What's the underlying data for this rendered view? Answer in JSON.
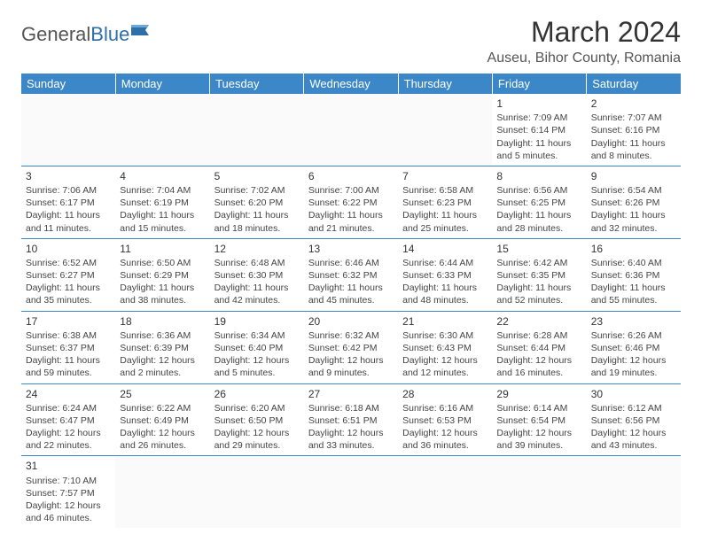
{
  "logo": {
    "part1": "General",
    "part2": "Blue"
  },
  "title": "March 2024",
  "location": "Auseu, Bihor County, Romania",
  "colors": {
    "header_bg": "#3b87c8",
    "header_text": "#ffffff",
    "border": "#3b87c8",
    "text": "#444444",
    "logo_accent": "#2f6fa8"
  },
  "weekdays": [
    "Sunday",
    "Monday",
    "Tuesday",
    "Wednesday",
    "Thursday",
    "Friday",
    "Saturday"
  ],
  "weeks": [
    [
      null,
      null,
      null,
      null,
      null,
      {
        "day": "1",
        "sunrise": "Sunrise: 7:09 AM",
        "sunset": "Sunset: 6:14 PM",
        "daylight": "Daylight: 11 hours and 5 minutes."
      },
      {
        "day": "2",
        "sunrise": "Sunrise: 7:07 AM",
        "sunset": "Sunset: 6:16 PM",
        "daylight": "Daylight: 11 hours and 8 minutes."
      }
    ],
    [
      {
        "day": "3",
        "sunrise": "Sunrise: 7:06 AM",
        "sunset": "Sunset: 6:17 PM",
        "daylight": "Daylight: 11 hours and 11 minutes."
      },
      {
        "day": "4",
        "sunrise": "Sunrise: 7:04 AM",
        "sunset": "Sunset: 6:19 PM",
        "daylight": "Daylight: 11 hours and 15 minutes."
      },
      {
        "day": "5",
        "sunrise": "Sunrise: 7:02 AM",
        "sunset": "Sunset: 6:20 PM",
        "daylight": "Daylight: 11 hours and 18 minutes."
      },
      {
        "day": "6",
        "sunrise": "Sunrise: 7:00 AM",
        "sunset": "Sunset: 6:22 PM",
        "daylight": "Daylight: 11 hours and 21 minutes."
      },
      {
        "day": "7",
        "sunrise": "Sunrise: 6:58 AM",
        "sunset": "Sunset: 6:23 PM",
        "daylight": "Daylight: 11 hours and 25 minutes."
      },
      {
        "day": "8",
        "sunrise": "Sunrise: 6:56 AM",
        "sunset": "Sunset: 6:25 PM",
        "daylight": "Daylight: 11 hours and 28 minutes."
      },
      {
        "day": "9",
        "sunrise": "Sunrise: 6:54 AM",
        "sunset": "Sunset: 6:26 PM",
        "daylight": "Daylight: 11 hours and 32 minutes."
      }
    ],
    [
      {
        "day": "10",
        "sunrise": "Sunrise: 6:52 AM",
        "sunset": "Sunset: 6:27 PM",
        "daylight": "Daylight: 11 hours and 35 minutes."
      },
      {
        "day": "11",
        "sunrise": "Sunrise: 6:50 AM",
        "sunset": "Sunset: 6:29 PM",
        "daylight": "Daylight: 11 hours and 38 minutes."
      },
      {
        "day": "12",
        "sunrise": "Sunrise: 6:48 AM",
        "sunset": "Sunset: 6:30 PM",
        "daylight": "Daylight: 11 hours and 42 minutes."
      },
      {
        "day": "13",
        "sunrise": "Sunrise: 6:46 AM",
        "sunset": "Sunset: 6:32 PM",
        "daylight": "Daylight: 11 hours and 45 minutes."
      },
      {
        "day": "14",
        "sunrise": "Sunrise: 6:44 AM",
        "sunset": "Sunset: 6:33 PM",
        "daylight": "Daylight: 11 hours and 48 minutes."
      },
      {
        "day": "15",
        "sunrise": "Sunrise: 6:42 AM",
        "sunset": "Sunset: 6:35 PM",
        "daylight": "Daylight: 11 hours and 52 minutes."
      },
      {
        "day": "16",
        "sunrise": "Sunrise: 6:40 AM",
        "sunset": "Sunset: 6:36 PM",
        "daylight": "Daylight: 11 hours and 55 minutes."
      }
    ],
    [
      {
        "day": "17",
        "sunrise": "Sunrise: 6:38 AM",
        "sunset": "Sunset: 6:37 PM",
        "daylight": "Daylight: 11 hours and 59 minutes."
      },
      {
        "day": "18",
        "sunrise": "Sunrise: 6:36 AM",
        "sunset": "Sunset: 6:39 PM",
        "daylight": "Daylight: 12 hours and 2 minutes."
      },
      {
        "day": "19",
        "sunrise": "Sunrise: 6:34 AM",
        "sunset": "Sunset: 6:40 PM",
        "daylight": "Daylight: 12 hours and 5 minutes."
      },
      {
        "day": "20",
        "sunrise": "Sunrise: 6:32 AM",
        "sunset": "Sunset: 6:42 PM",
        "daylight": "Daylight: 12 hours and 9 minutes."
      },
      {
        "day": "21",
        "sunrise": "Sunrise: 6:30 AM",
        "sunset": "Sunset: 6:43 PM",
        "daylight": "Daylight: 12 hours and 12 minutes."
      },
      {
        "day": "22",
        "sunrise": "Sunrise: 6:28 AM",
        "sunset": "Sunset: 6:44 PM",
        "daylight": "Daylight: 12 hours and 16 minutes."
      },
      {
        "day": "23",
        "sunrise": "Sunrise: 6:26 AM",
        "sunset": "Sunset: 6:46 PM",
        "daylight": "Daylight: 12 hours and 19 minutes."
      }
    ],
    [
      {
        "day": "24",
        "sunrise": "Sunrise: 6:24 AM",
        "sunset": "Sunset: 6:47 PM",
        "daylight": "Daylight: 12 hours and 22 minutes."
      },
      {
        "day": "25",
        "sunrise": "Sunrise: 6:22 AM",
        "sunset": "Sunset: 6:49 PM",
        "daylight": "Daylight: 12 hours and 26 minutes."
      },
      {
        "day": "26",
        "sunrise": "Sunrise: 6:20 AM",
        "sunset": "Sunset: 6:50 PM",
        "daylight": "Daylight: 12 hours and 29 minutes."
      },
      {
        "day": "27",
        "sunrise": "Sunrise: 6:18 AM",
        "sunset": "Sunset: 6:51 PM",
        "daylight": "Daylight: 12 hours and 33 minutes."
      },
      {
        "day": "28",
        "sunrise": "Sunrise: 6:16 AM",
        "sunset": "Sunset: 6:53 PM",
        "daylight": "Daylight: 12 hours and 36 minutes."
      },
      {
        "day": "29",
        "sunrise": "Sunrise: 6:14 AM",
        "sunset": "Sunset: 6:54 PM",
        "daylight": "Daylight: 12 hours and 39 minutes."
      },
      {
        "day": "30",
        "sunrise": "Sunrise: 6:12 AM",
        "sunset": "Sunset: 6:56 PM",
        "daylight": "Daylight: 12 hours and 43 minutes."
      }
    ],
    [
      {
        "day": "31",
        "sunrise": "Sunrise: 7:10 AM",
        "sunset": "Sunset: 7:57 PM",
        "daylight": "Daylight: 12 hours and 46 minutes."
      },
      null,
      null,
      null,
      null,
      null,
      null
    ]
  ]
}
